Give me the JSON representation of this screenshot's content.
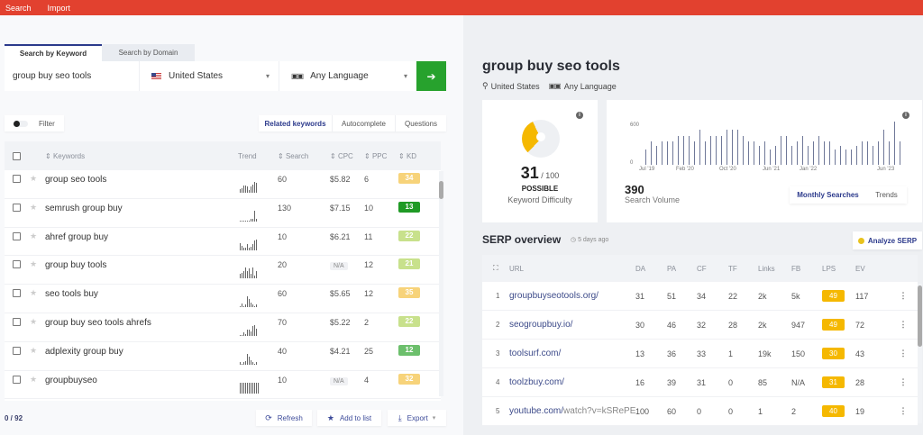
{
  "topbar": {
    "items": [
      "Search",
      "Import"
    ],
    "color": "#e2412f"
  },
  "search": {
    "tabs": [
      {
        "label": "Search by Keyword",
        "active": true
      },
      {
        "label": "Search by Domain",
        "active": false
      }
    ],
    "keyword_value": "group buy seo tools",
    "country": "United States",
    "language": "Any Language",
    "go_icon": "arrow-right-icon",
    "go_color": "#27a22d"
  },
  "filter": {
    "label": "Filter",
    "enabled": false
  },
  "keyword_tabs": [
    "Related keywords",
    "Autocomplete",
    "Questions"
  ],
  "keyword_table": {
    "headers": {
      "keywords": "Keywords",
      "trend": "Trend",
      "search": "Search",
      "cpc": "CPC",
      "ppc": "PPC",
      "kd": "KD"
    },
    "rows": [
      {
        "keyword": "group seo tools",
        "search": "60",
        "cpc": "$5.82",
        "ppc": "6",
        "kd": "34",
        "kd_color": "#f7d37a",
        "trend": [
          3,
          4,
          6,
          6,
          5,
          2,
          5,
          7,
          9,
          8
        ]
      },
      {
        "keyword": "semrush group buy",
        "search": "130",
        "cpc": "$7.15",
        "ppc": "10",
        "kd": "13",
        "kd_color": "#1f9a25",
        "trend": [
          1,
          1,
          1,
          1,
          1,
          1,
          2,
          2,
          9,
          2
        ]
      },
      {
        "keyword": "ahref group buy",
        "search": "10",
        "cpc": "$6.21",
        "ppc": "11",
        "kd": "22",
        "kd_color": "#c8e18c",
        "trend": [
          6,
          4,
          2,
          2,
          5,
          2,
          3,
          5,
          8,
          9
        ]
      },
      {
        "keyword": "group buy tools",
        "search": "20",
        "cpc": "N/A",
        "ppc": "12",
        "kd": "21",
        "kd_color": "#c8e18c",
        "trend": [
          3,
          4,
          5,
          8,
          5,
          7,
          3,
          8,
          2,
          5
        ]
      },
      {
        "keyword": "seo tools buy",
        "search": "60",
        "cpc": "$5.65",
        "ppc": "12",
        "kd": "35",
        "kd_color": "#f7d37a",
        "trend": [
          1,
          3,
          1,
          2,
          9,
          7,
          4,
          2,
          1,
          2
        ]
      },
      {
        "keyword": "group buy seo tools ahrefs",
        "search": "70",
        "cpc": "$5.22",
        "ppc": "2",
        "kd": "22",
        "kd_color": "#c8e18c",
        "trend": [
          1,
          1,
          3,
          2,
          6,
          6,
          4,
          9,
          10,
          7
        ]
      },
      {
        "keyword": "adplexity group buy",
        "search": "40",
        "cpc": "$4.21",
        "ppc": "25",
        "kd": "12",
        "kd_color": "#6cbf6c",
        "trend": [
          2,
          1,
          2,
          3,
          9,
          7,
          4,
          2,
          1,
          2
        ]
      },
      {
        "keyword": "groupbuyseo",
        "search": "10",
        "cpc": "N/A",
        "ppc": "4",
        "kd": "32",
        "kd_color": "#f7d37a",
        "trend": [
          9,
          9,
          9,
          9,
          9,
          9,
          9,
          9,
          9,
          9,
          9
        ]
      }
    ]
  },
  "footer": {
    "count": "0 / 92",
    "refresh": "Refresh",
    "add_to_list": "Add to list",
    "export": "Export"
  },
  "overview": {
    "title": "group buy seo tools",
    "location": "United States",
    "language": "Any Language"
  },
  "kd_card": {
    "value": "31",
    "max": "/ 100",
    "rating": "POSSIBLE",
    "label": "Keyword Difficulty",
    "color": "#f5b800"
  },
  "volume_card": {
    "value": "390",
    "label": "Search Volume",
    "tabs": [
      "Monthly Searches",
      "Trends"
    ],
    "y_ticks": [
      "600",
      "0"
    ],
    "x_ticks": [
      "Jul '19",
      "Feb '20",
      "Oct '20",
      "Jun '21",
      "Jan '22",
      "Jun '23"
    ]
  },
  "chart_data": {
    "type": "bar",
    "title": "Search Volume (Monthly Searches)",
    "xlabel": "",
    "ylabel": "",
    "ylim": [
      0,
      600
    ],
    "x_tick_labels": [
      "Jul '19",
      "Feb '20",
      "Oct '20",
      "Jun '21",
      "Jan '22",
      "Jun '23"
    ],
    "values": [
      260,
      390,
      320,
      390,
      390,
      390,
      480,
      480,
      480,
      390,
      590,
      390,
      480,
      480,
      480,
      590,
      590,
      590,
      480,
      390,
      390,
      320,
      390,
      260,
      320,
      480,
      480,
      320,
      390,
      480,
      320,
      390,
      480,
      390,
      390,
      260,
      320,
      260,
      260,
      320,
      390,
      390,
      320,
      390,
      590,
      390,
      720,
      390
    ],
    "grid": false,
    "legend": "none"
  },
  "serp": {
    "title": "SERP overview",
    "updated": "5 days ago",
    "analyze_label": "Analyze SERP",
    "headers": [
      "URL",
      "DA",
      "PA",
      "CF",
      "TF",
      "Links",
      "FB",
      "LPS",
      "EV"
    ],
    "rows": [
      {
        "n": "1",
        "domain": "groupbuyseotools.org/",
        "path": "",
        "da": "31",
        "pa": "51",
        "cf": "34",
        "tf": "22",
        "links": "2k",
        "fb": "5k",
        "lps": "49",
        "ev": "117"
      },
      {
        "n": "2",
        "domain": "seogroupbuy.io/",
        "path": "",
        "da": "30",
        "pa": "46",
        "cf": "32",
        "tf": "28",
        "links": "2k",
        "fb": "947",
        "lps": "49",
        "ev": "72"
      },
      {
        "n": "3",
        "domain": "toolsurf.com/",
        "path": "",
        "da": "13",
        "pa": "36",
        "cf": "33",
        "tf": "1",
        "links": "19k",
        "fb": "150",
        "lps": "30",
        "ev": "43"
      },
      {
        "n": "4",
        "domain": "toolzbuy.com/",
        "path": "",
        "da": "16",
        "pa": "39",
        "cf": "31",
        "tf": "0",
        "links": "85",
        "fb": "N/A",
        "lps": "31",
        "ev": "28"
      },
      {
        "n": "5",
        "domain": "youtube.com/",
        "path": "watch?v=kSRePE...",
        "da": "100",
        "pa": "60",
        "cf": "0",
        "tf": "0",
        "links": "1",
        "fb": "2",
        "lps": "40",
        "ev": "19"
      }
    ]
  }
}
